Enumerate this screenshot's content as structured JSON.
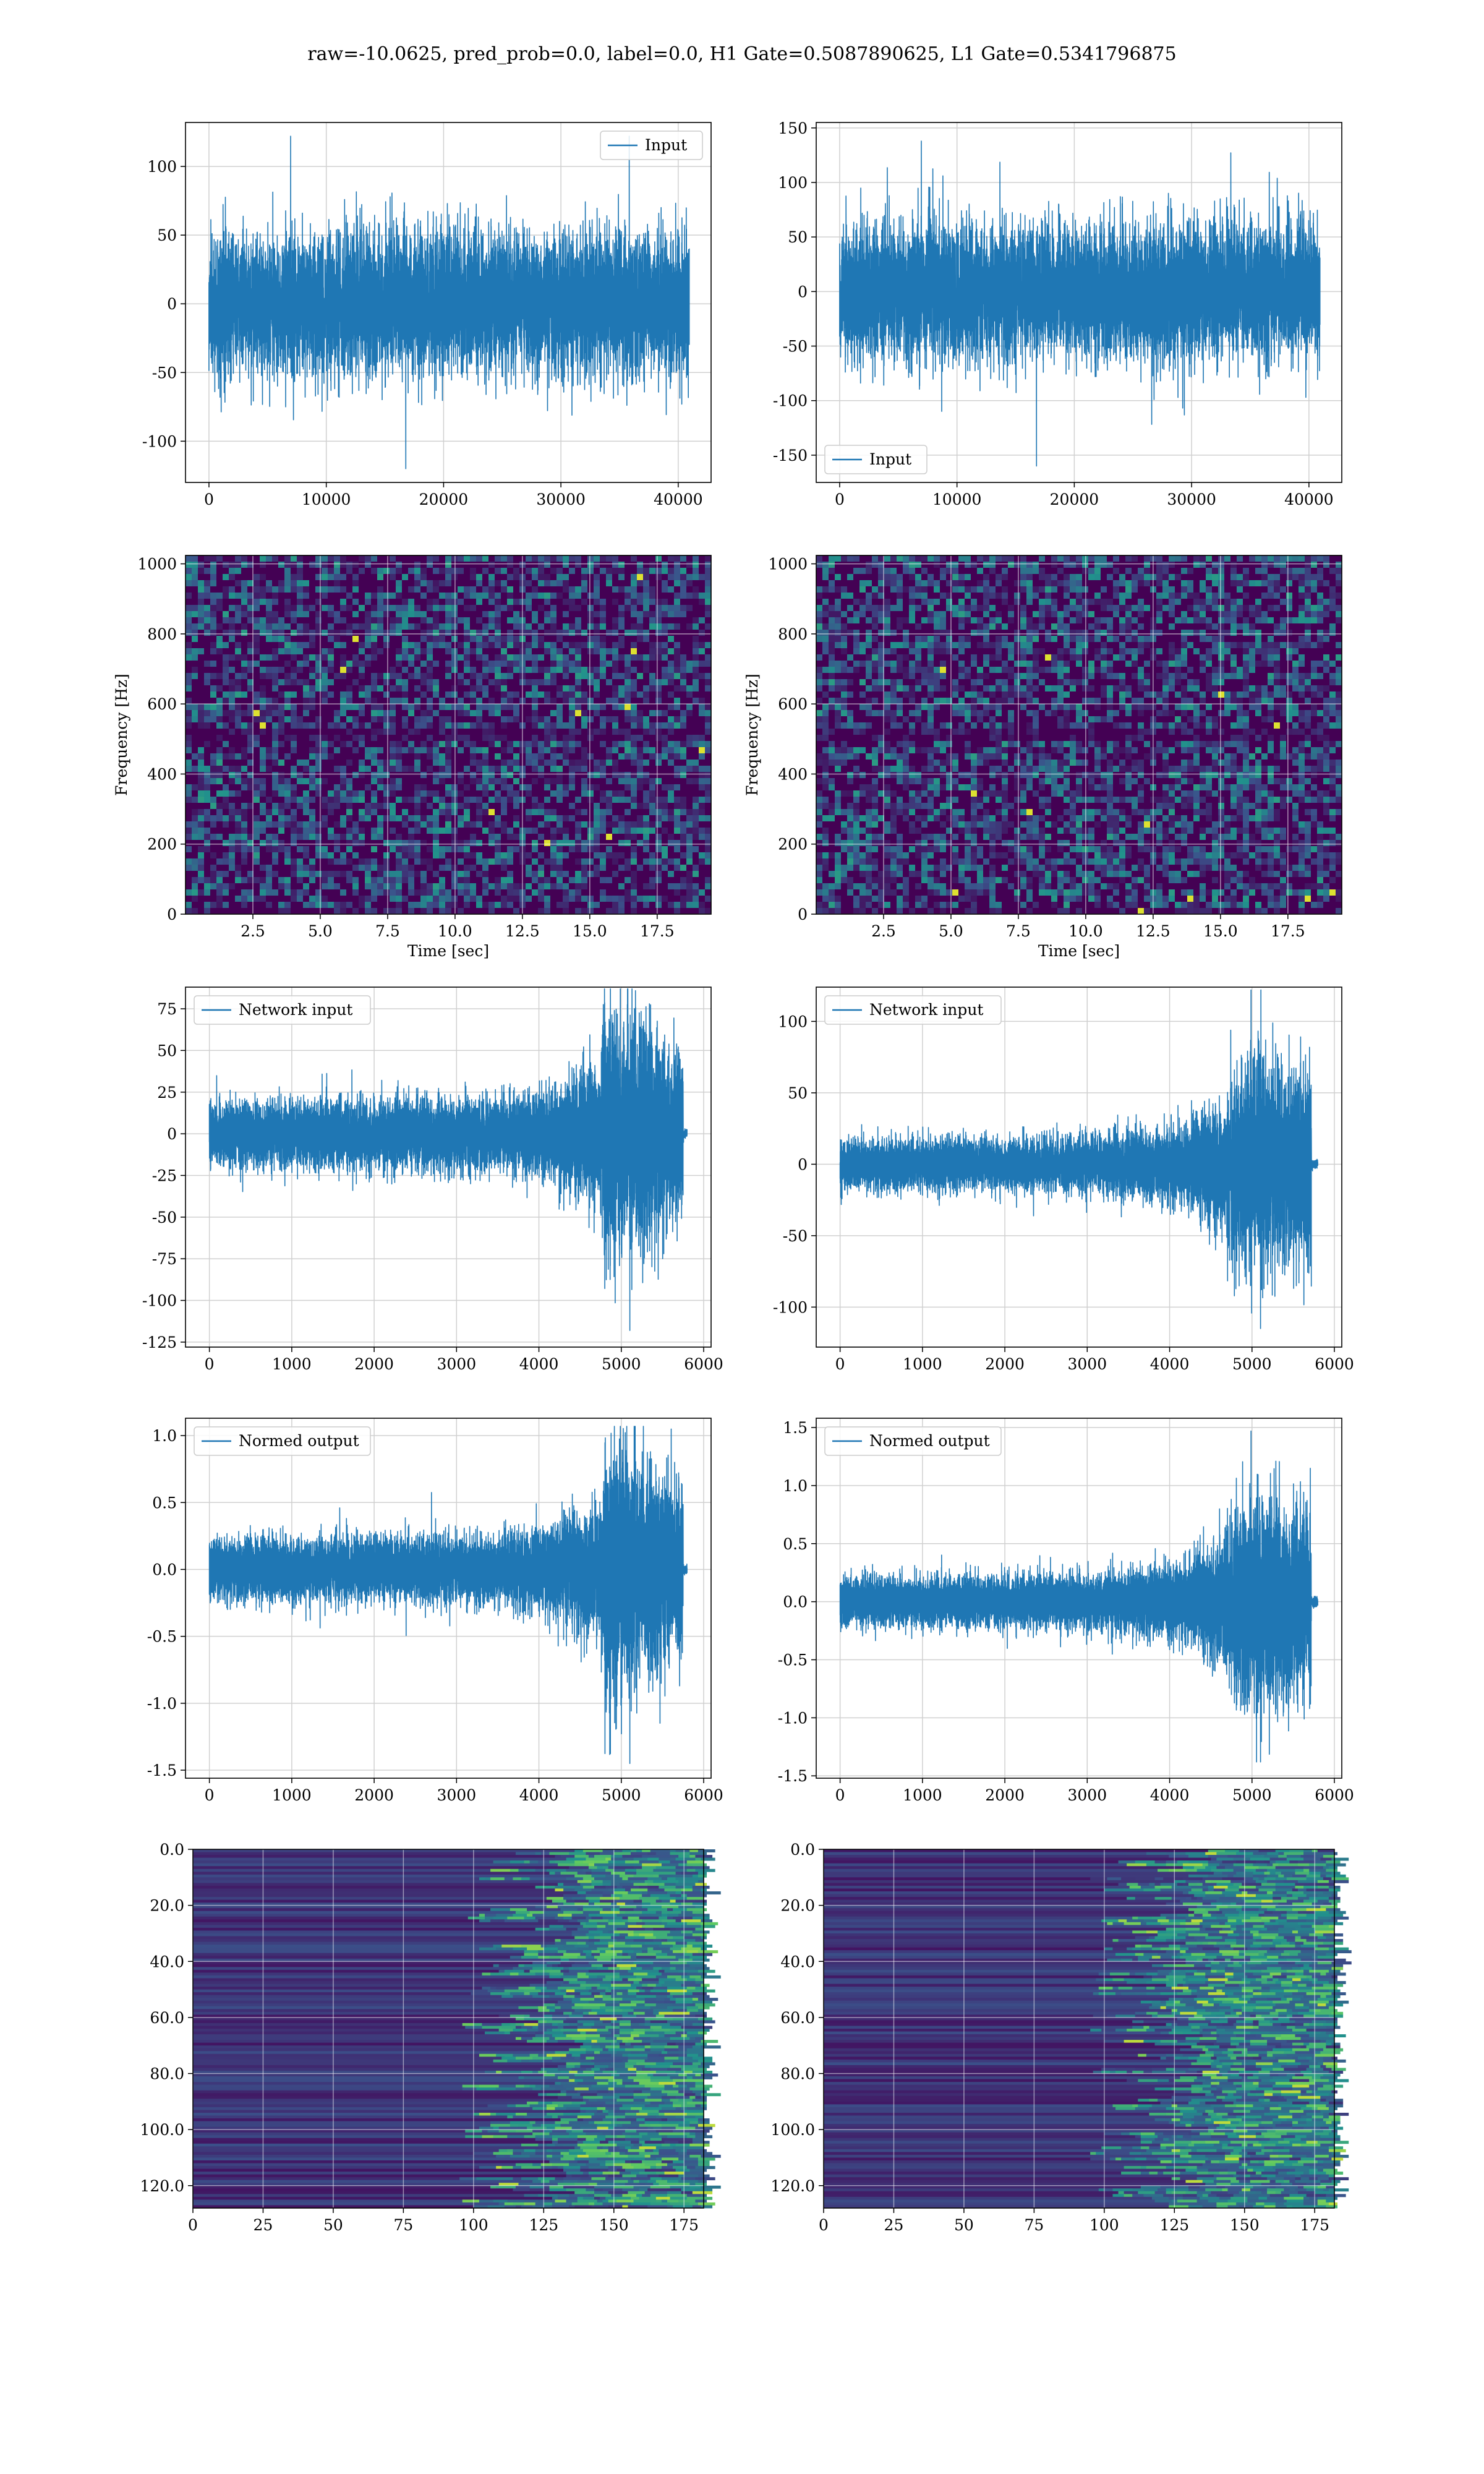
{
  "figure": {
    "title": "raw=-10.0625, pred_prob=0.0, label=0.0, H1 Gate=0.5087890625, L1 Gate=0.5341796875"
  },
  "colors": {
    "line": "#1f77b4",
    "grid": "#d0d0d0",
    "viridis_dark": "#440154",
    "viridis_low": "#3b1d71",
    "viridis_mid": "#2a788e",
    "viridis_high": "#22a884",
    "viridis_peak": "#fde725"
  },
  "chart_data": [
    {
      "id": "h1-input",
      "type": "line",
      "legend": "Input",
      "legend_loc": "upper right",
      "xlim": [
        -2000,
        42800
      ],
      "ylim": [
        -130,
        132
      ],
      "xticks": [
        0,
        10000,
        20000,
        30000,
        40000
      ],
      "yticks": [
        -100,
        -50,
        0,
        50,
        100
      ],
      "xlabel": "",
      "ylabel": "",
      "signal": {
        "n": 40960,
        "envelope": [
          [
            0,
            1
          ],
          [
            1,
            1
          ]
        ],
        "noise_sigma": 25,
        "max_abs": 122,
        "min_abs": -120
      }
    },
    {
      "id": "l1-input",
      "type": "line",
      "legend": "Input",
      "legend_loc": "lower left",
      "xlim": [
        -2000,
        42800
      ],
      "ylim": [
        -175,
        155
      ],
      "xticks": [
        0,
        10000,
        20000,
        30000,
        40000
      ],
      "yticks": [
        -150,
        -100,
        -50,
        0,
        50,
        100,
        150
      ],
      "xlabel": "",
      "ylabel": "",
      "signal": {
        "n": 40960,
        "envelope": [
          [
            0,
            1
          ],
          [
            1,
            1
          ]
        ],
        "noise_sigma": 30,
        "max_abs": 138,
        "min_abs": -160
      }
    },
    {
      "id": "h1-spectrogram",
      "type": "heatmap",
      "colormap": "viridis",
      "xlim": [
        0,
        19.5
      ],
      "ylim": [
        0,
        1024
      ],
      "xticks": [
        2.5,
        5.0,
        7.5,
        10.0,
        12.5,
        15.0,
        17.5
      ],
      "yticks": [
        0,
        200,
        400,
        600,
        800,
        1000
      ],
      "xlabel": "Time [sec]",
      "ylabel": "Frequency [Hz]",
      "grid": true
    },
    {
      "id": "l1-spectrogram",
      "type": "heatmap",
      "colormap": "viridis",
      "xlim": [
        0,
        19.5
      ],
      "ylim": [
        0,
        1024
      ],
      "xticks": [
        2.5,
        5.0,
        7.5,
        10.0,
        12.5,
        15.0,
        17.5
      ],
      "yticks": [
        0,
        200,
        400,
        600,
        800,
        1000
      ],
      "xlabel": "Time [sec]",
      "ylabel": "Frequency [Hz]",
      "grid": true
    },
    {
      "id": "h1-network-input",
      "type": "line",
      "legend": "Network input",
      "legend_loc": "upper left",
      "xlim": [
        -290,
        6090
      ],
      "ylim": [
        -128,
        88
      ],
      "xticks": [
        0,
        1000,
        2000,
        3000,
        4000,
        5000,
        6000
      ],
      "yticks": [
        -125,
        -100,
        -75,
        -50,
        -25,
        0,
        25,
        50,
        75
      ],
      "xlabel": "",
      "ylabel": "",
      "signal": {
        "n": 5800,
        "cut": 5750,
        "envelope": [
          [
            0,
            9
          ],
          [
            3500,
            10
          ],
          [
            4200,
            13
          ],
          [
            4750,
            20
          ],
          [
            4800,
            35
          ],
          [
            5300,
            30
          ],
          [
            5740,
            22
          ]
        ],
        "max_abs": 87,
        "min_abs": -118
      }
    },
    {
      "id": "l1-network-input",
      "type": "line",
      "legend": "Network input",
      "legend_loc": "upper left",
      "xlim": [
        -290,
        6090
      ],
      "ylim": [
        -128,
        124
      ],
      "xticks": [
        0,
        1000,
        2000,
        3000,
        4000,
        5000,
        6000
      ],
      "yticks": [
        -100,
        -50,
        0,
        50,
        100
      ],
      "xlabel": "",
      "ylabel": "",
      "signal": {
        "n": 5800,
        "cut": 5720,
        "envelope": [
          [
            0,
            8
          ],
          [
            3000,
            9
          ],
          [
            4200,
            13
          ],
          [
            4650,
            22
          ],
          [
            4950,
            35
          ],
          [
            5700,
            30
          ]
        ],
        "max_abs": 122,
        "min_abs": -115
      }
    },
    {
      "id": "h1-normed-output",
      "type": "line",
      "legend": "Normed output",
      "legend_loc": "upper left",
      "xlim": [
        -290,
        6090
      ],
      "ylim": [
        -1.56,
        1.13
      ],
      "xticks": [
        0,
        1000,
        2000,
        3000,
        4000,
        5000,
        6000
      ],
      "yticks": [
        -1.5,
        -1.0,
        -0.5,
        0.0,
        0.5,
        1.0
      ],
      "xlabel": "",
      "ylabel": "",
      "signal": {
        "n": 5800,
        "cut": 5750,
        "envelope": [
          [
            0,
            0.11
          ],
          [
            3500,
            0.12
          ],
          [
            4200,
            0.16
          ],
          [
            4750,
            0.25
          ],
          [
            4800,
            0.43
          ],
          [
            5300,
            0.37
          ],
          [
            5740,
            0.27
          ]
        ],
        "max_abs": 1.07,
        "min_abs": -1.45
      }
    },
    {
      "id": "l1-normed-output",
      "type": "line",
      "legend": "Normed output",
      "legend_loc": "upper left",
      "xlim": [
        -290,
        6090
      ],
      "ylim": [
        -1.52,
        1.58
      ],
      "xticks": [
        0,
        1000,
        2000,
        3000,
        4000,
        5000,
        6000
      ],
      "yticks": [
        -1.5,
        -1.0,
        -0.5,
        0.0,
        0.5,
        1.0,
        1.5
      ],
      "xlabel": "",
      "ylabel": "",
      "signal": {
        "n": 5800,
        "cut": 5720,
        "envelope": [
          [
            0,
            0.1
          ],
          [
            3000,
            0.11
          ],
          [
            4200,
            0.16
          ],
          [
            4650,
            0.27
          ],
          [
            4950,
            0.43
          ],
          [
            5700,
            0.37
          ]
        ],
        "max_abs": 1.47,
        "min_abs": -1.38
      }
    },
    {
      "id": "h1-feature-map",
      "type": "heatmap",
      "colormap": "viridis",
      "xlim": [
        0,
        182
      ],
      "ylim": [
        128,
        0
      ],
      "xticks": [
        0,
        25,
        50,
        75,
        100,
        125,
        150,
        175
      ],
      "yticks": [
        0,
        20,
        40,
        60,
        80,
        100,
        120
      ],
      "xlabel": "",
      "ylabel": "",
      "grid": true
    },
    {
      "id": "l1-feature-map",
      "type": "heatmap",
      "colormap": "viridis",
      "xlim": [
        0,
        182
      ],
      "ylim": [
        128,
        0
      ],
      "xticks": [
        0,
        25,
        50,
        75,
        100,
        125,
        150,
        175
      ],
      "yticks": [
        0,
        20,
        40,
        60,
        80,
        100,
        120
      ],
      "xlabel": "",
      "ylabel": "",
      "grid": true
    }
  ]
}
